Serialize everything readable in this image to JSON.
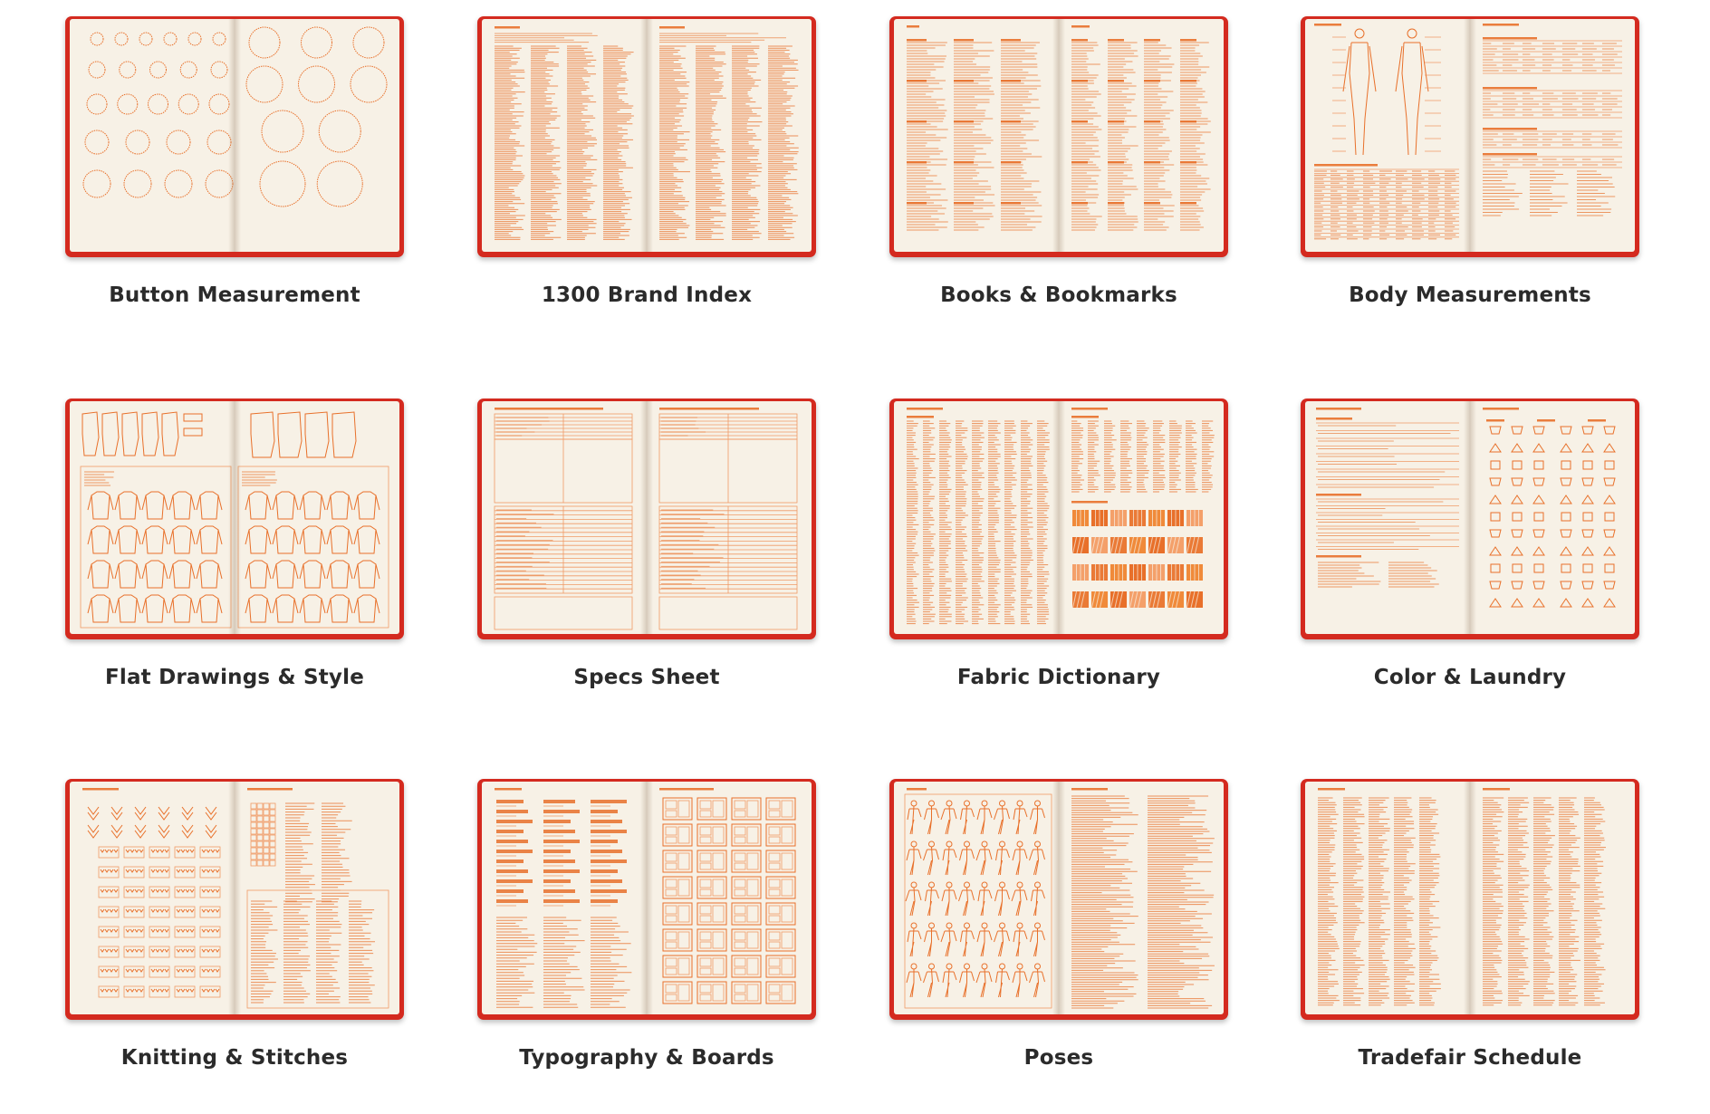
{
  "sections": [
    {
      "title": "Button Measurement",
      "pattern": "circles"
    },
    {
      "title": "1300 Brand Index",
      "pattern": "dense-text"
    },
    {
      "title": "Books & Bookmarks",
      "pattern": "columns-text"
    },
    {
      "title": "Body Measurements",
      "pattern": "body-table"
    },
    {
      "title": "Flat Drawings & Style",
      "pattern": "flats"
    },
    {
      "title": "Specs Sheet",
      "pattern": "form"
    },
    {
      "title": "Fabric Dictionary",
      "pattern": "fabric"
    },
    {
      "title": "Color & Laundry",
      "pattern": "laundry"
    },
    {
      "title": "Knitting & Stitches",
      "pattern": "knitting"
    },
    {
      "title": "Typography & Boards",
      "pattern": "typography"
    },
    {
      "title": "Poses",
      "pattern": "poses"
    },
    {
      "title": "Tradefair Schedule",
      "pattern": "schedule"
    }
  ],
  "colors": {
    "cover": "#d42a1f",
    "paper": "#f7f1e6",
    "ink": "#e8702a",
    "caption": "#2b2b2b"
  }
}
